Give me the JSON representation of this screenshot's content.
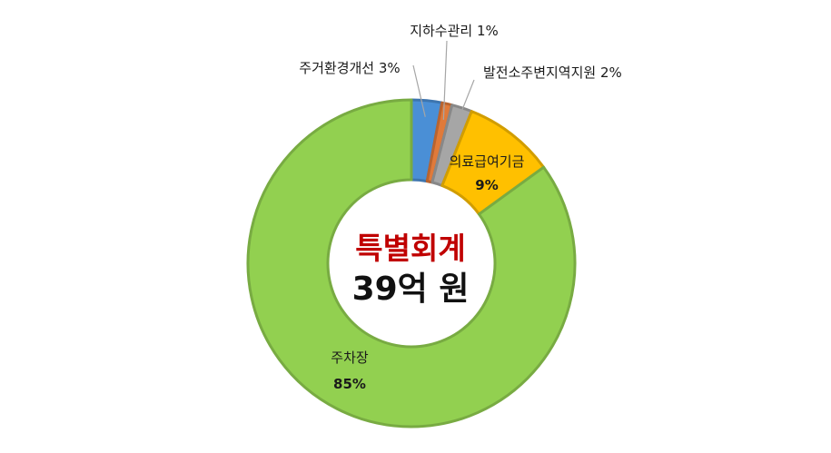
{
  "chart_data": {
    "type": "pie",
    "variant": "donut",
    "center_title": "특별회계",
    "center_value": "39억 원",
    "slices": [
      {
        "label": "주거환경개선",
        "percent_text": "3%",
        "value": 3,
        "color": "#4a8fd6"
      },
      {
        "label": "지하수관리",
        "percent_text": "1%",
        "value": 1,
        "color": "#e07a3a"
      },
      {
        "label": "발전소주변지역지원",
        "percent_text": "2%",
        "value": 2,
        "color": "#a6a6a6"
      },
      {
        "label": "의료급여기금",
        "percent_text": "9%",
        "value": 9,
        "color": "#ffc000"
      },
      {
        "label": "주차장",
        "percent_text": "85%",
        "value": 85,
        "color": "#92d050"
      }
    ]
  },
  "colors": {
    "center_title": "#c00000",
    "background": "#ffffff"
  }
}
